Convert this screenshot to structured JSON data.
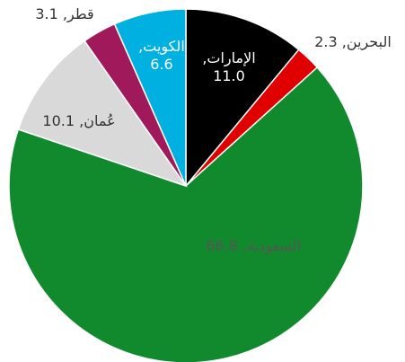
{
  "chart_data": {
    "type": "pie",
    "values": [
      11.0,
      2.3,
      66.8,
      10.1,
      3.1,
      6.6
    ],
    "value_labels": [
      "الإمارات, 11.0",
      "البحرين, 2.3",
      "السعودية, 66.8",
      "عُمان, 10.1",
      "قطر, 3.1",
      "الكويت, 6.6"
    ],
    "colors": [
      "#000000",
      "#e00000",
      "#118a2e",
      "#d9d9d9",
      "#a0195a",
      "#00b0e0"
    ]
  }
}
